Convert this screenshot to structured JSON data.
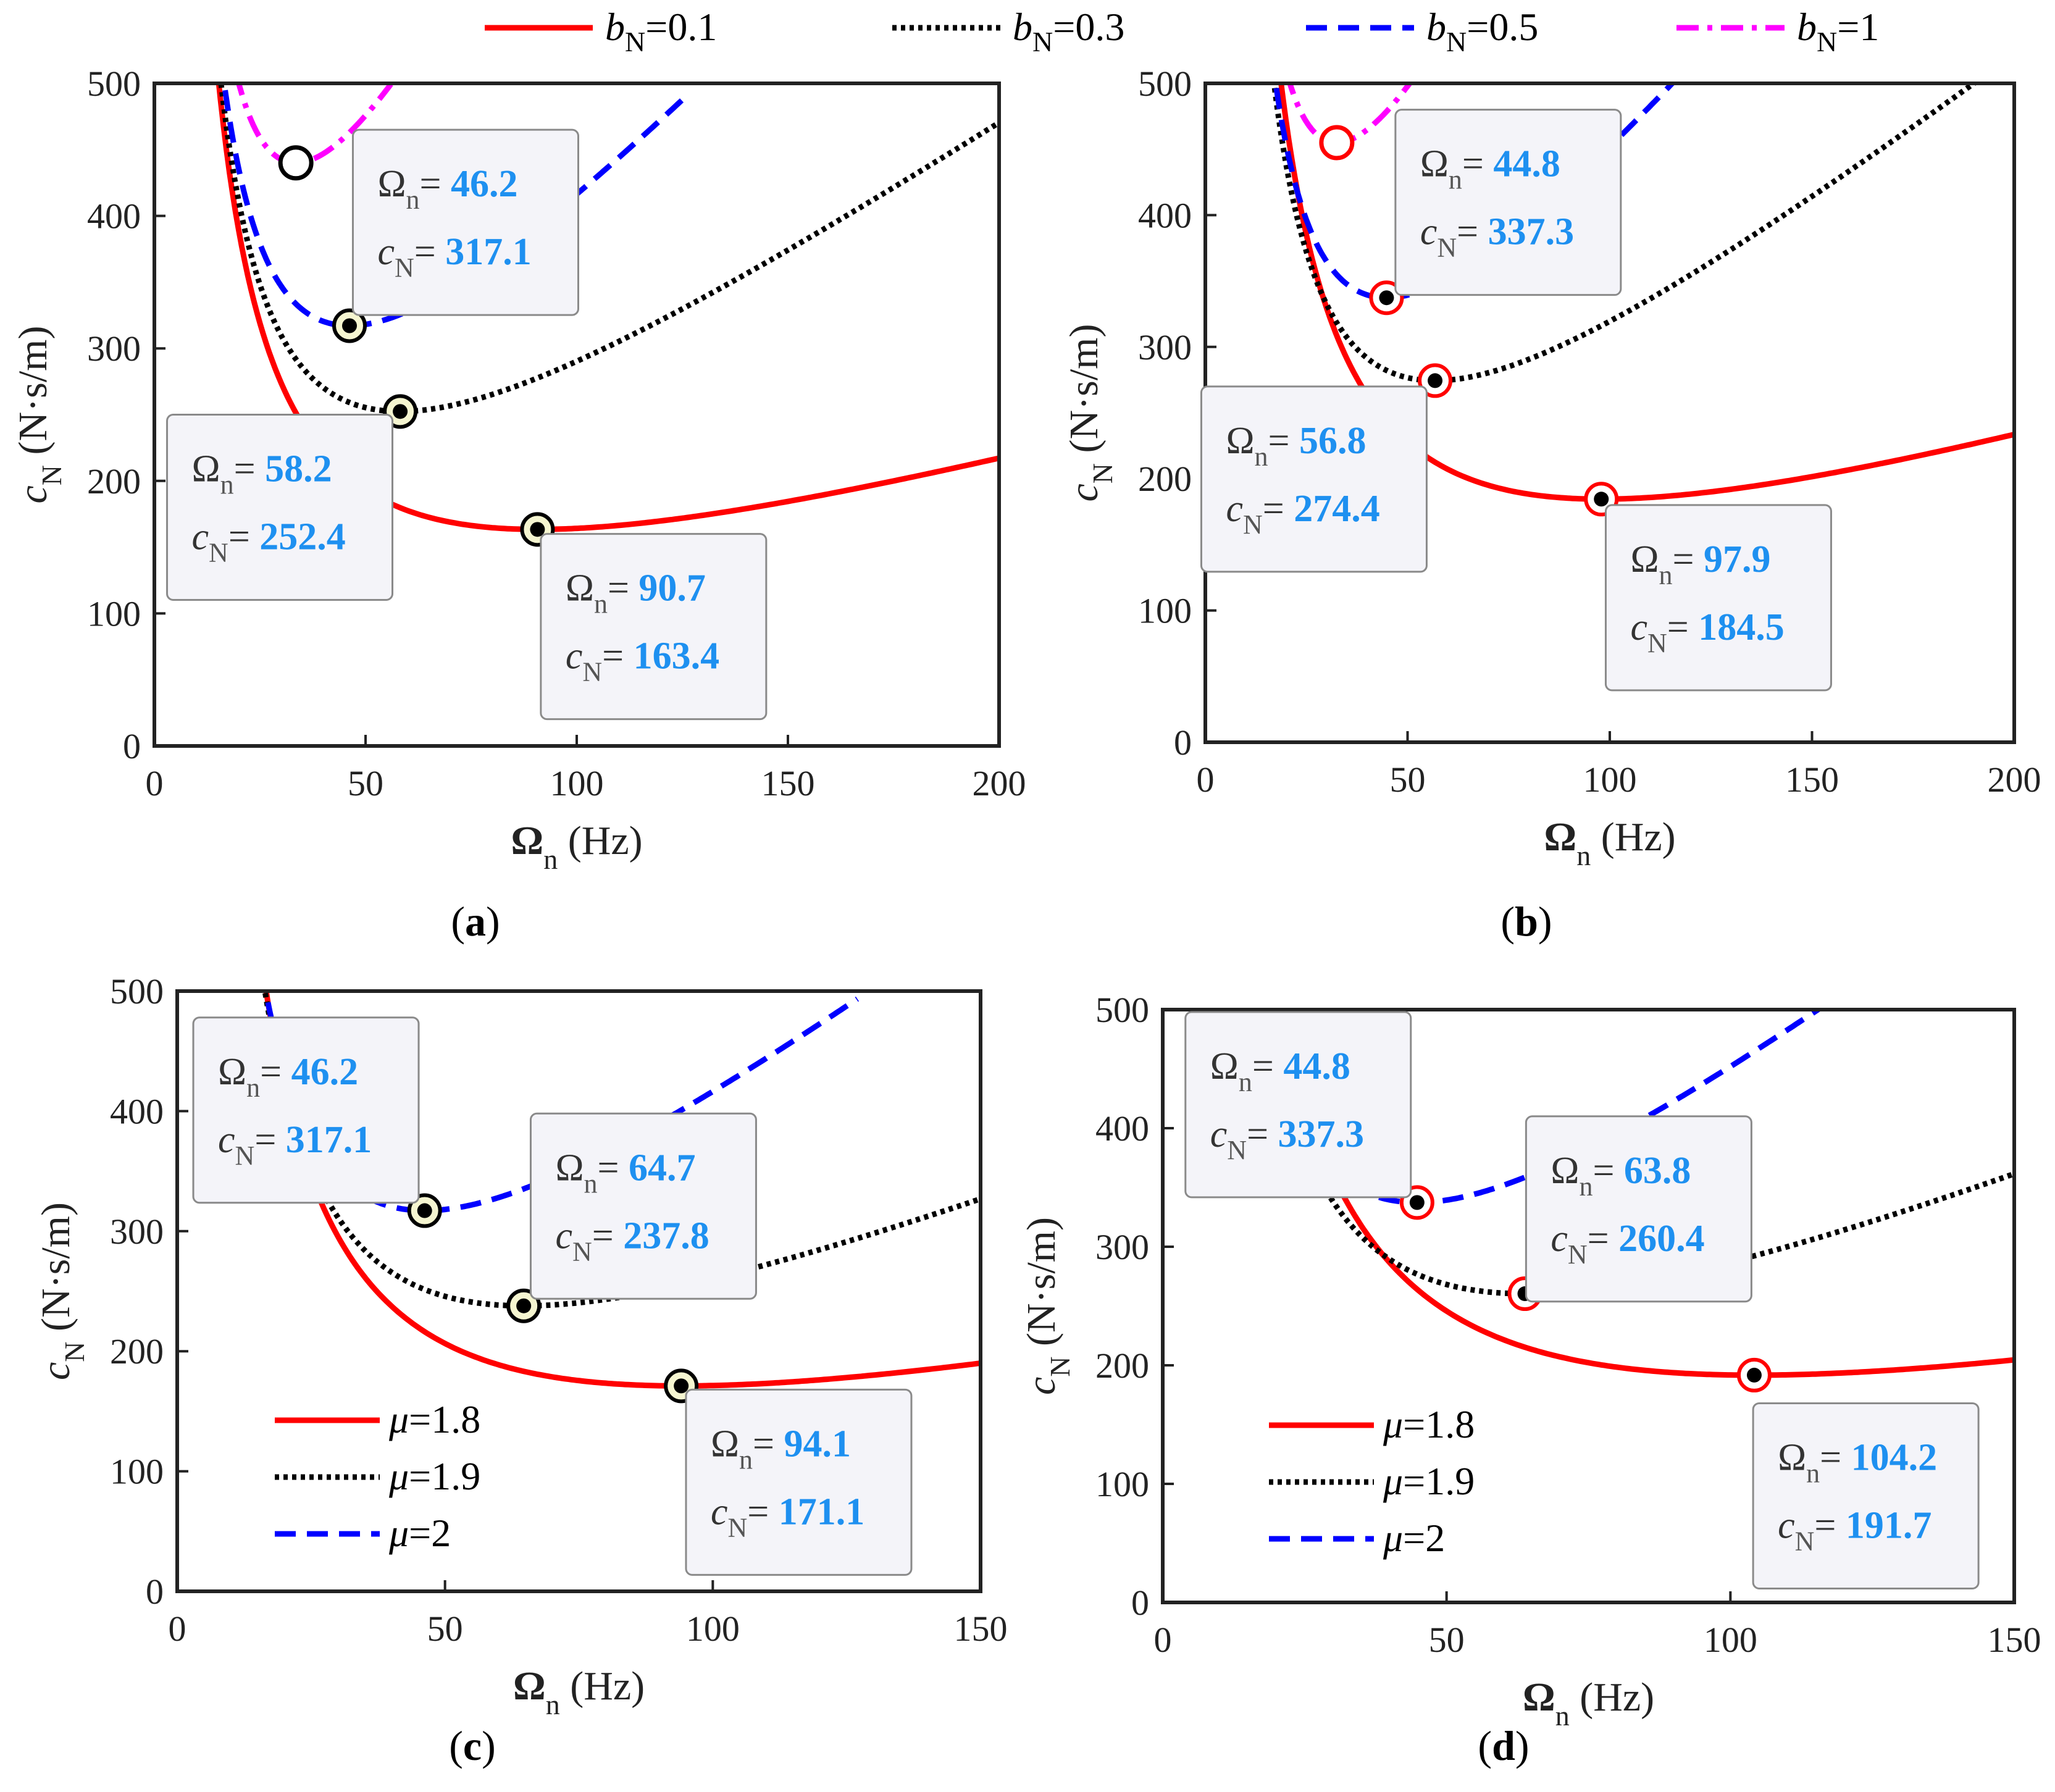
{
  "figure": {
    "top_legend": [
      {
        "var": "b",
        "sub": "N",
        "value": "=0.1",
        "style": "solid",
        "color": "#FF0000"
      },
      {
        "var": "b",
        "sub": "N",
        "value": "=0.3",
        "style": "dotted",
        "color": "#000000"
      },
      {
        "var": "b",
        "sub": "N",
        "value": "=0.5",
        "style": "dashed",
        "color": "#0000FF"
      },
      {
        "var": "b",
        "sub": "N",
        "value": "=1",
        "style": "dashdot",
        "color": "#FF00FF"
      }
    ]
  },
  "chart_data": [
    {
      "panel": "(a)",
      "panel_letter": "a",
      "type": "line",
      "xlabel": "Ω",
      "xlabel_sub": "n",
      "xlabel_unit": "(Hz)",
      "ylabel": "c",
      "ylabel_sub": "N",
      "ylabel_unit": "(N·s/m)",
      "xlim": [
        0,
        200
      ],
      "ylim": [
        0,
        500
      ],
      "xticks": [
        0,
        50,
        100,
        150,
        200
      ],
      "yticks": [
        0,
        100,
        200,
        300,
        400,
        500
      ],
      "legend": null,
      "marker_style": "black-ring",
      "series": [
        {
          "name": "bN=0.1",
          "color": "#FF0000",
          "style": "solid",
          "cmin": 163.4,
          "omin": 90.7,
          "x_end": 200
        },
        {
          "name": "bN=0.3",
          "color": "#000000",
          "style": "dotted",
          "cmin": 252.4,
          "omin": 58.2,
          "x_end": 200
        },
        {
          "name": "bN=0.5",
          "color": "#0000FF",
          "style": "dashed",
          "cmin": 317.1,
          "omin": 46.2,
          "x_end": 126
        },
        {
          "name": "bN=1",
          "color": "#FF00FF",
          "style": "dashdot",
          "cmin": 440,
          "omin": 33.5,
          "x_end": 56
        }
      ],
      "markers": [
        {
          "x": 33.5,
          "y": 440,
          "filled": false
        },
        {
          "x": 46.2,
          "y": 317.1,
          "filled": true
        },
        {
          "x": 58.2,
          "y": 252.4,
          "filled": true
        },
        {
          "x": 90.7,
          "y": 163.4,
          "filled": true
        }
      ],
      "annotations": [
        {
          "omega": "46.2",
          "c": "317.1",
          "anchor_x": 47,
          "anchor_y": 465
        },
        {
          "omega": "58.2",
          "c": "252.4",
          "anchor_x": 3,
          "anchor_y": 250
        },
        {
          "omega": "90.7",
          "c": "163.4",
          "anchor_x": 91.5,
          "anchor_y": 160
        }
      ]
    },
    {
      "panel": "(b)",
      "panel_letter": "b",
      "type": "line",
      "xlabel": "Ω",
      "xlabel_sub": "n",
      "xlabel_unit": "(Hz)",
      "ylabel": "c",
      "ylabel_sub": "N",
      "ylabel_unit": "(N·s/m)",
      "xlim": [
        0,
        200
      ],
      "ylim": [
        0,
        500
      ],
      "xticks": [
        0,
        50,
        100,
        150,
        200
      ],
      "yticks": [
        0,
        100,
        200,
        300,
        400,
        500
      ],
      "legend": null,
      "marker_style": "red-ring",
      "series": [
        {
          "name": "bN=0.1",
          "color": "#FF0000",
          "style": "solid",
          "cmin": 184.5,
          "omin": 97.9,
          "x_end": 200
        },
        {
          "name": "bN=0.3",
          "color": "#000000",
          "style": "dotted",
          "cmin": 274.4,
          "omin": 56.8,
          "x_end": 200
        },
        {
          "name": "bN=0.5",
          "color": "#0000FF",
          "style": "dashed",
          "cmin": 337.3,
          "omin": 44.8,
          "x_end": 124
        },
        {
          "name": "bN=1",
          "color": "#FF00FF",
          "style": "dashdot",
          "cmin": 455,
          "omin": 32.5,
          "x_end": 51
        }
      ],
      "markers": [
        {
          "x": 32.5,
          "y": 455,
          "filled": false
        },
        {
          "x": 44.8,
          "y": 337.3,
          "filled": true
        },
        {
          "x": 56.8,
          "y": 274.4,
          "filled": true
        },
        {
          "x": 97.9,
          "y": 184.5,
          "filled": true
        }
      ],
      "annotations": [
        {
          "omega": "44.8",
          "c": "337.3",
          "anchor_x": 47,
          "anchor_y": 480
        },
        {
          "omega": "56.8",
          "c": "274.4",
          "anchor_x": -1,
          "anchor_y": 270
        },
        {
          "omega": "97.9",
          "c": "184.5",
          "anchor_x": 99,
          "anchor_y": 180
        }
      ]
    },
    {
      "panel": "(c)",
      "panel_letter": "c",
      "type": "line",
      "xlabel": "Ω",
      "xlabel_sub": "n",
      "xlabel_unit": "(Hz)",
      "ylabel": "c",
      "ylabel_sub": "N",
      "ylabel_unit": "(N·s/m)",
      "xlim": [
        0,
        150
      ],
      "ylim": [
        0,
        500
      ],
      "xticks": [
        0,
        50,
        100,
        150
      ],
      "yticks": [
        0,
        100,
        200,
        300,
        400,
        500
      ],
      "legend": [
        {
          "var": "μ",
          "value": "=1.8",
          "style": "solid",
          "color": "#FF0000"
        },
        {
          "var": "μ",
          "value": "=1.9",
          "style": "dotted",
          "color": "#000000"
        },
        {
          "var": "μ",
          "value": "=2",
          "style": "dashed",
          "color": "#0000FF"
        }
      ],
      "marker_style": "black-ring",
      "series": [
        {
          "name": "μ=1.8",
          "color": "#FF0000",
          "style": "solid",
          "cmin": 171.1,
          "omin": 94.1,
          "x_end": 150
        },
        {
          "name": "μ=1.9",
          "color": "#000000",
          "style": "dotted",
          "cmin": 237.8,
          "omin": 64.7,
          "x_end": 150
        },
        {
          "name": "μ=2",
          "color": "#0000FF",
          "style": "dashed",
          "cmin": 317.1,
          "omin": 46.2,
          "x_end": 127
        }
      ],
      "markers": [
        {
          "x": 46.2,
          "y": 317.1,
          "filled": true
        },
        {
          "x": 64.7,
          "y": 237.8,
          "filled": true
        },
        {
          "x": 94.1,
          "y": 171.1,
          "filled": true
        }
      ],
      "annotations": [
        {
          "omega": "46.2",
          "c": "317.1",
          "anchor_x": 3,
          "anchor_y": 478
        },
        {
          "omega": "64.7",
          "c": "237.8",
          "anchor_x": 66,
          "anchor_y": 398
        },
        {
          "omega": "94.1",
          "c": "171.1",
          "anchor_x": 95,
          "anchor_y": 168
        }
      ]
    },
    {
      "panel": "(d)",
      "panel_letter": "d",
      "type": "line",
      "xlabel": "Ω",
      "xlabel_sub": "n",
      "xlabel_unit": "(Hz)",
      "ylabel": "c",
      "ylabel_sub": "N",
      "ylabel_unit": "(N·s/m)",
      "xlim": [
        0,
        150
      ],
      "ylim": [
        0,
        500
      ],
      "xticks": [
        0,
        50,
        100,
        150
      ],
      "yticks": [
        0,
        100,
        200,
        300,
        400,
        500
      ],
      "legend": [
        {
          "var": "μ",
          "value": "=1.8",
          "style": "solid",
          "color": "#FF0000"
        },
        {
          "var": "μ",
          "value": "=1.9",
          "style": "dotted",
          "color": "#000000"
        },
        {
          "var": "μ",
          "value": "=2",
          "style": "dashed",
          "color": "#0000FF"
        }
      ],
      "marker_style": "red-ring",
      "series": [
        {
          "name": "μ=1.8",
          "color": "#FF0000",
          "style": "solid",
          "cmin": 191.7,
          "omin": 104.2,
          "x_end": 150
        },
        {
          "name": "μ=1.9",
          "color": "#000000",
          "style": "dotted",
          "cmin": 260.4,
          "omin": 63.8,
          "x_end": 150
        },
        {
          "name": "μ=2",
          "color": "#0000FF",
          "style": "dashed",
          "cmin": 337.3,
          "omin": 44.8,
          "x_end": 124
        }
      ],
      "markers": [
        {
          "x": 44.8,
          "y": 337.3,
          "filled": true
        },
        {
          "x": 63.8,
          "y": 260.4,
          "filled": true
        },
        {
          "x": 104.2,
          "y": 191.7,
          "filled": true
        }
      ],
      "annotations": [
        {
          "omega": "44.8",
          "c": "337.3",
          "anchor_x": 4,
          "anchor_y": 498
        },
        {
          "omega": "63.8",
          "c": "260.4",
          "anchor_x": 64,
          "anchor_y": 410
        },
        {
          "omega": "104.2",
          "c": "191.7",
          "anchor_x": 104,
          "anchor_y": 168
        }
      ]
    }
  ]
}
